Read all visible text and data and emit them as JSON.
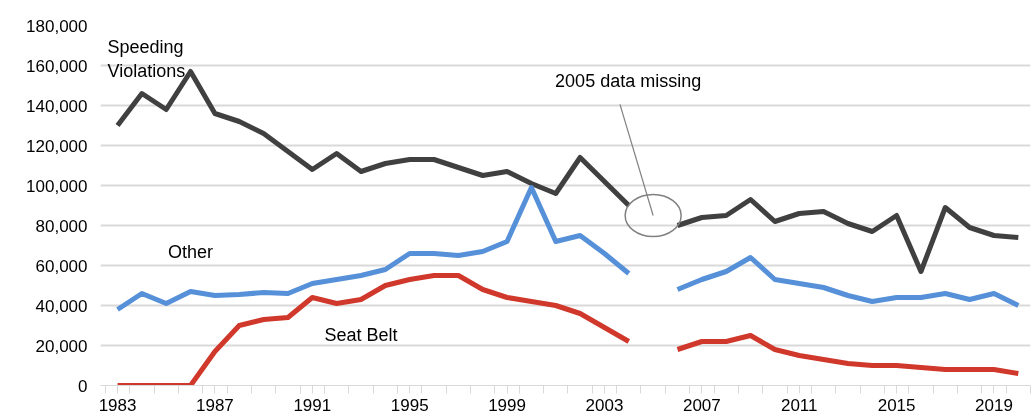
{
  "chart_data": {
    "type": "line",
    "x": [
      1983,
      1984,
      1985,
      1986,
      1987,
      1988,
      1989,
      1990,
      1991,
      1992,
      1993,
      1994,
      1995,
      1996,
      1997,
      1998,
      1999,
      2000,
      2001,
      2002,
      2003,
      2004,
      2005,
      2006,
      2007,
      2008,
      2009,
      2010,
      2011,
      2012,
      2013,
      2014,
      2015,
      2016,
      2017,
      2018,
      2019,
      2020
    ],
    "series": [
      {
        "name": "Speeding\nViolations",
        "color": "#404040",
        "values": [
          130000,
          146000,
          138000,
          157000,
          136000,
          132000,
          126000,
          117000,
          108000,
          116000,
          107000,
          111000,
          113000,
          113000,
          109000,
          105000,
          107000,
          101000,
          96000,
          114000,
          102000,
          90000,
          null,
          80000,
          84000,
          85000,
          93000,
          82000,
          86000,
          87000,
          81000,
          77000,
          85000,
          57000,
          89000,
          79000,
          75000,
          74000
        ]
      },
      {
        "name": "Other",
        "color": "#5590d8",
        "values": [
          38000,
          46000,
          41000,
          47000,
          45000,
          45500,
          46500,
          46000,
          51000,
          53000,
          55000,
          58000,
          66000,
          66000,
          65000,
          67000,
          72000,
          99000,
          72000,
          75000,
          66000,
          56000,
          null,
          48000,
          53000,
          57000,
          64000,
          53000,
          51000,
          49000,
          45000,
          42000,
          44000,
          44000,
          46000,
          43000,
          46000,
          40000
        ]
      },
      {
        "name": "Seat Belt",
        "color": "#d0382b",
        "values": [
          0,
          0,
          0,
          0,
          17000,
          30000,
          33000,
          34000,
          44000,
          41000,
          43000,
          50000,
          53000,
          55000,
          55000,
          48000,
          44000,
          42000,
          40000,
          36000,
          29000,
          22000,
          null,
          18000,
          22000,
          22000,
          25000,
          18000,
          15000,
          13000,
          11000,
          10000,
          10000,
          9000,
          8000,
          8000,
          8000,
          6000
        ]
      }
    ],
    "xlim": [
      1982.3,
      2020.5
    ],
    "xticks": [
      1983,
      1987,
      1991,
      1995,
      1999,
      2003,
      2007,
      2011,
      2015,
      2019
    ],
    "ylim": [
      0,
      180000
    ],
    "yticks": [
      {
        "value": 0,
        "label": "0"
      },
      {
        "value": 20000,
        "label": "20,000"
      },
      {
        "value": 40000,
        "label": "40,000"
      },
      {
        "value": 60000,
        "label": "60,000"
      },
      {
        "value": 80000,
        "label": "80,000"
      },
      {
        "value": 100000,
        "label": "100,000"
      },
      {
        "value": 120000,
        "label": "120,000"
      },
      {
        "value": 140000,
        "label": "140,000"
      },
      {
        "value": 160000,
        "label": "160,000"
      },
      {
        "value": 180000,
        "label": "180,000"
      }
    ],
    "grid": "y",
    "line_style": "solid",
    "marker": "none",
    "annotations": [
      "2005 data missing"
    ]
  }
}
